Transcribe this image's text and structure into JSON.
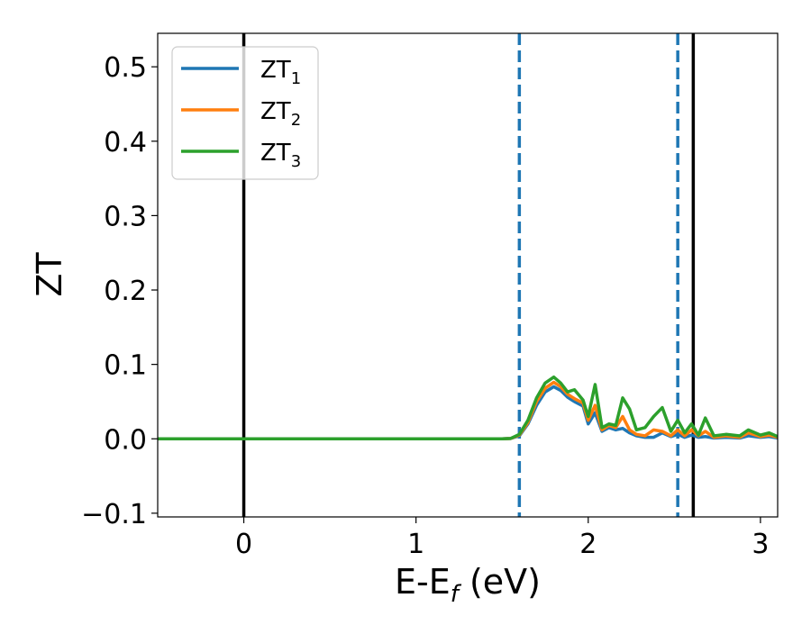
{
  "chart_data": {
    "type": "line",
    "xlabel": "E-E",
    "xlabel_sub": "f",
    "xlabel_suffix": " (eV)",
    "ylabel": "ZT",
    "xlim": [
      -0.5,
      3.1
    ],
    "ylim": [
      -0.105,
      0.545
    ],
    "xticks": [
      0,
      1,
      2,
      3
    ],
    "xtick_labels": [
      "0",
      "1",
      "2",
      "3"
    ],
    "yticks": [
      -0.1,
      0.0,
      0.1,
      0.2,
      0.3,
      0.4,
      0.5
    ],
    "ytick_labels": [
      "−0.1",
      "0.0",
      "0.1",
      "0.2",
      "0.3",
      "0.4",
      "0.5"
    ],
    "grid": false,
    "legend_placement": "top-left",
    "vlines_solid": [
      0.0,
      2.61
    ],
    "vlines_dashed": [
      1.6,
      2.52
    ],
    "series": [
      {
        "name": "ZT",
        "name_sub": "1",
        "color": "#1f77b4",
        "x": [
          -0.5,
          1.5,
          1.55,
          1.6,
          1.65,
          1.7,
          1.75,
          1.8,
          1.84,
          1.88,
          1.92,
          1.97,
          2.0,
          2.04,
          2.08,
          2.12,
          2.16,
          2.2,
          2.24,
          2.28,
          2.33,
          2.38,
          2.43,
          2.48,
          2.52,
          2.56,
          2.6,
          2.64,
          2.68,
          2.73,
          2.8,
          2.88,
          2.93,
          3.0,
          3.05,
          3.1
        ],
        "y": [
          0.0,
          0.0,
          0.0005,
          0.004,
          0.02,
          0.045,
          0.063,
          0.07,
          0.065,
          0.056,
          0.05,
          0.044,
          0.02,
          0.035,
          0.01,
          0.015,
          0.012,
          0.014,
          0.008,
          0.004,
          0.002,
          0.002,
          0.008,
          0.003,
          0.006,
          0.002,
          0.005,
          0.002,
          0.003,
          0.001,
          0.002,
          0.001,
          0.004,
          0.002,
          0.003,
          0.001
        ]
      },
      {
        "name": "ZT",
        "name_sub": "2",
        "color": "#ff7f0e",
        "x": [
          -0.5,
          1.5,
          1.55,
          1.6,
          1.65,
          1.7,
          1.75,
          1.8,
          1.84,
          1.88,
          1.92,
          1.97,
          2.0,
          2.04,
          2.08,
          2.12,
          2.16,
          2.2,
          2.24,
          2.28,
          2.33,
          2.38,
          2.43,
          2.48,
          2.52,
          2.56,
          2.6,
          2.64,
          2.68,
          2.73,
          2.8,
          2.88,
          2.93,
          3.0,
          3.05,
          3.1
        ],
        "y": [
          0.0,
          0.0,
          0.0005,
          0.005,
          0.022,
          0.05,
          0.068,
          0.076,
          0.07,
          0.06,
          0.054,
          0.048,
          0.025,
          0.045,
          0.012,
          0.018,
          0.015,
          0.03,
          0.012,
          0.006,
          0.004,
          0.012,
          0.01,
          0.004,
          0.012,
          0.004,
          0.012,
          0.004,
          0.01,
          0.002,
          0.004,
          0.002,
          0.008,
          0.003,
          0.005,
          0.002
        ]
      },
      {
        "name": "ZT",
        "name_sub": "3",
        "color": "#2ca02c",
        "x": [
          -0.5,
          1.5,
          1.55,
          1.6,
          1.65,
          1.7,
          1.75,
          1.8,
          1.84,
          1.88,
          1.92,
          1.97,
          2.0,
          2.04,
          2.08,
          2.12,
          2.16,
          2.2,
          2.24,
          2.28,
          2.33,
          2.38,
          2.43,
          2.48,
          2.52,
          2.56,
          2.6,
          2.64,
          2.68,
          2.73,
          2.8,
          2.88,
          2.93,
          3.0,
          3.05,
          3.1
        ],
        "y": [
          0.0,
          0.0,
          0.0005,
          0.006,
          0.025,
          0.055,
          0.075,
          0.083,
          0.075,
          0.063,
          0.066,
          0.052,
          0.03,
          0.073,
          0.015,
          0.02,
          0.018,
          0.055,
          0.04,
          0.012,
          0.015,
          0.03,
          0.042,
          0.01,
          0.025,
          0.008,
          0.02,
          0.005,
          0.028,
          0.004,
          0.006,
          0.004,
          0.012,
          0.005,
          0.008,
          0.003
        ]
      }
    ]
  }
}
